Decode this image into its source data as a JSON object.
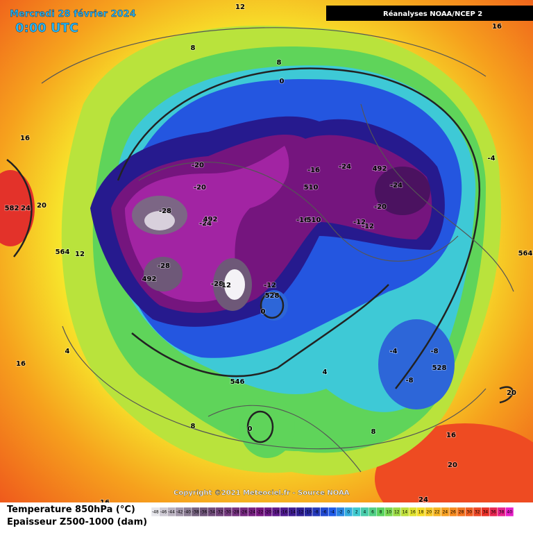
{
  "header": {
    "title": "Mercredi 28 février 2024",
    "time": "0:00 UTC",
    "source_badge": "Réanalyses NOAA/NCEP 2"
  },
  "map": {
    "contour_labels": [
      "12",
      "16",
      "8",
      "8",
      "0",
      "16",
      "-4",
      "-20",
      "-20",
      "-16",
      "-24",
      "492",
      "-24",
      "510",
      "-20",
      "-28",
      "-24",
      "492",
      "-16",
      "510",
      "-12",
      "-12",
      "24",
      "20",
      "582",
      "564",
      "12",
      "-28",
      "492",
      "-28",
      "12",
      "-12",
      "528",
      "0",
      "4",
      "16",
      "-4",
      "-8",
      "528",
      "-8",
      "4",
      "546",
      "20",
      "0",
      "8",
      "8",
      "16",
      "20",
      "24",
      "16",
      "564"
    ]
  },
  "footer": {
    "copyright": "Copyright ©2021 Meteociel.fr - Source NOAA",
    "legend_line1": "Temperature 850hPa (°C)",
    "legend_line2": "Epaisseur Z500-1000 (dam)",
    "colorbar_ticks": [
      -48,
      -46,
      -44,
      -42,
      -40,
      -38,
      -36,
      -34,
      -32,
      -30,
      -28,
      -26,
      -24,
      -22,
      -20,
      -18,
      -16,
      -14,
      -12,
      -10,
      -8,
      -6,
      -4,
      -2,
      0,
      2,
      4,
      6,
      8,
      10,
      12,
      14,
      16,
      18,
      20,
      22,
      24,
      26,
      28,
      30,
      32,
      34,
      36,
      38,
      40
    ]
  }
}
